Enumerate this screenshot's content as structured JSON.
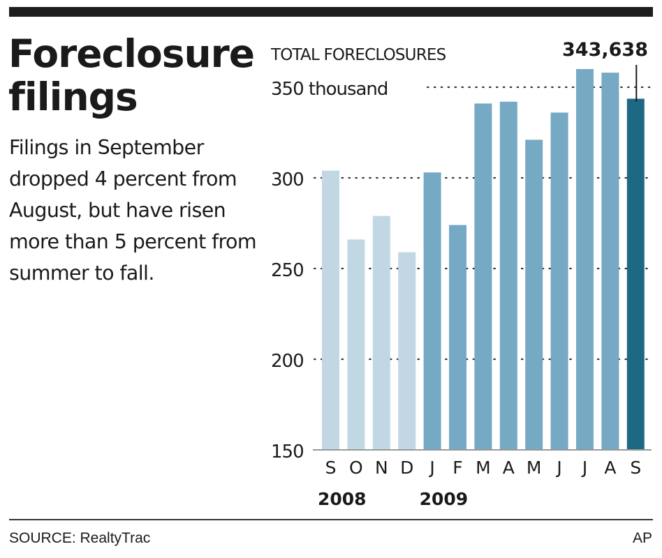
{
  "header": {
    "title_line1": "Foreclosure",
    "title_line2": "filings",
    "description": "Filings in September dropped 4 percent from August, but have risen more than 5 percent from summer to fall."
  },
  "footer": {
    "source": "SOURCE: RealtyTrac",
    "credit": "AP"
  },
  "colors": {
    "bar_2008": "#c1d7e3",
    "bar_2009": "#75a9c4",
    "bar_highlight": "#1d6882",
    "grid": "#333333",
    "text": "#1a1a1a"
  },
  "chart_data": {
    "type": "bar",
    "title": "TOTAL FORECLOSURES",
    "ylabel": "thousand",
    "categories": [
      "S",
      "O",
      "N",
      "D",
      "J",
      "F",
      "M",
      "A",
      "M",
      "J",
      "J",
      "A",
      "S"
    ],
    "years": [
      {
        "label": "2008",
        "start_index": 0
      },
      {
        "label": "2009",
        "start_index": 4
      }
    ],
    "values": [
      304,
      266,
      279,
      259,
      303,
      274,
      341,
      342,
      321,
      336,
      360,
      358,
      343.638
    ],
    "groups": [
      "2008",
      "2008",
      "2008",
      "2008",
      "2009",
      "2009",
      "2009",
      "2009",
      "2009",
      "2009",
      "2009",
      "2009",
      "highlight"
    ],
    "ylim": [
      150,
      365
    ],
    "yticks": [
      150,
      200,
      250,
      300,
      350
    ],
    "ytick_labels": [
      "150",
      "200",
      "250",
      "300",
      "350 thousand"
    ],
    "grid": true,
    "annotation": {
      "index": 12,
      "text": "343,638"
    }
  }
}
